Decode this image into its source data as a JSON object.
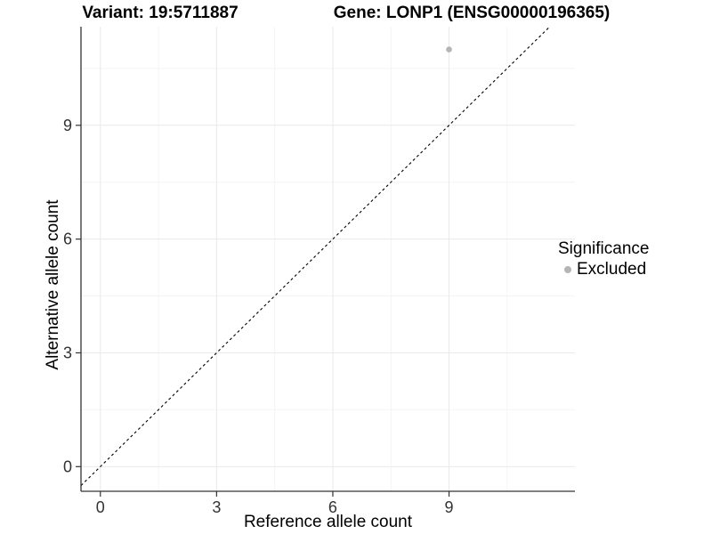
{
  "header": {
    "title_left": "Variant: 19:5711887",
    "title_right": "Gene: LONP1 (ENSG00000196365)"
  },
  "chart_data": {
    "type": "scatter",
    "xlabel": "Reference allele count",
    "ylabel": "Alternative allele count",
    "xlim": [
      -0.5,
      12.25
    ],
    "ylim": [
      -0.65,
      11.6
    ],
    "x_ticks": [
      0,
      3,
      6,
      9
    ],
    "y_ticks": [
      0,
      3,
      6,
      9
    ],
    "x_minor_gridlines": [
      1.5,
      4.5,
      7.5,
      10.5
    ],
    "y_minor_gridlines": [
      1.5,
      4.5,
      7.5,
      10.5
    ],
    "grid": true,
    "points": [
      {
        "x": 9,
        "y": 11,
        "series": "Excluded"
      }
    ],
    "reference_line": {
      "type": "identity",
      "equation": "y = x",
      "style": "dashed"
    },
    "legend": {
      "title": "Significance",
      "position": "right",
      "items": [
        {
          "label": "Excluded",
          "color": "#b5b5b5"
        }
      ]
    }
  },
  "colors": {
    "background": "#ffffff",
    "title_text": "#000000",
    "axis_text": "#333333",
    "axis_line": "#333333",
    "grid_major": "#e9e9e9",
    "grid_minor": "#f4f4f4",
    "point": "#b5b5b5",
    "reference_line": "#000000"
  }
}
